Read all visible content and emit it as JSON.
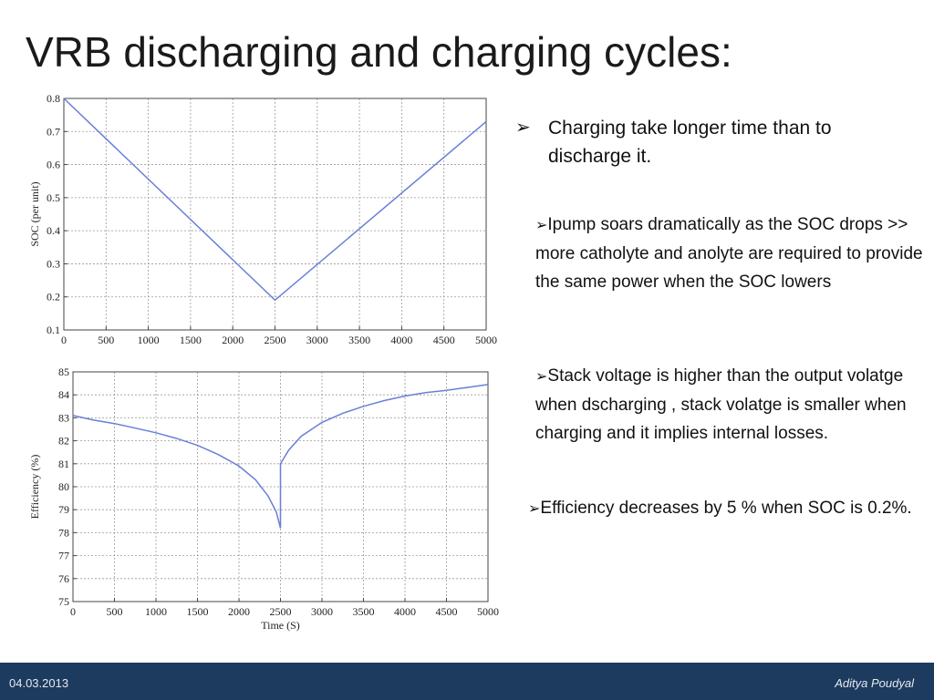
{
  "slide": {
    "title": "VRB discharging and charging cycles:",
    "footer": {
      "date": "04.03.2013",
      "author": "Aditya Poudyal"
    }
  },
  "bullets": [
    {
      "marker": "➢",
      "text": "Charging take longer time than to discharge it."
    },
    {
      "marker": "➢",
      "text": "Ipump soars dramatically as the SOC drops >> more catholyte and anolyte are required to provide the same power when the SOC lowers"
    },
    {
      "marker": "➢",
      "text": "Stack voltage is higher than the output volatge when dscharging , stack volatge is smaller when charging and it implies internal losses."
    },
    {
      "marker": "➢",
      "text": "Efficiency decreases by 5 % when SOC is 0.2%."
    }
  ],
  "colors": {
    "line": "#6a7fd6",
    "grid": "#9a9a9a",
    "footer_bg": "#1d3a5f"
  },
  "chart_data": [
    {
      "type": "line",
      "title": "",
      "xlabel": "",
      "ylabel": "SOC (per unit)",
      "xlim": [
        0,
        5000
      ],
      "ylim": [
        0.1,
        0.8
      ],
      "xticks": [
        0,
        500,
        1000,
        1500,
        2000,
        2500,
        3000,
        3500,
        4000,
        4500,
        5000
      ],
      "yticks": [
        0.1,
        0.2,
        0.3,
        0.4,
        0.5,
        0.6,
        0.7,
        0.8
      ],
      "grid": true,
      "series": [
        {
          "x": [
            0,
            2500,
            5000
          ],
          "y": [
            0.8,
            0.19,
            0.73
          ]
        }
      ]
    },
    {
      "type": "line",
      "title": "",
      "xlabel": "Time (S)",
      "ylabel": "Efficiency (%)",
      "xlim": [
        0,
        5000
      ],
      "ylim": [
        75,
        85
      ],
      "xticks": [
        0,
        500,
        1000,
        1500,
        2000,
        2500,
        3000,
        3500,
        4000,
        4500,
        5000
      ],
      "yticks": [
        75,
        76,
        77,
        78,
        79,
        80,
        81,
        82,
        83,
        84,
        85
      ],
      "grid": true,
      "series": [
        {
          "x": [
            0,
            250,
            500,
            750,
            1000,
            1250,
            1500,
            1750,
            2000,
            2200,
            2350,
            2450,
            2500,
            2500,
            2600,
            2750,
            3000,
            3250,
            3500,
            3750,
            4000,
            4250,
            4500,
            4750,
            5000
          ],
          "y": [
            83.1,
            82.9,
            82.75,
            82.55,
            82.35,
            82.1,
            81.8,
            81.4,
            80.9,
            80.3,
            79.6,
            78.9,
            78.2,
            81.0,
            81.6,
            82.2,
            82.8,
            83.2,
            83.5,
            83.75,
            83.95,
            84.1,
            84.2,
            84.32,
            84.45
          ]
        }
      ]
    }
  ]
}
